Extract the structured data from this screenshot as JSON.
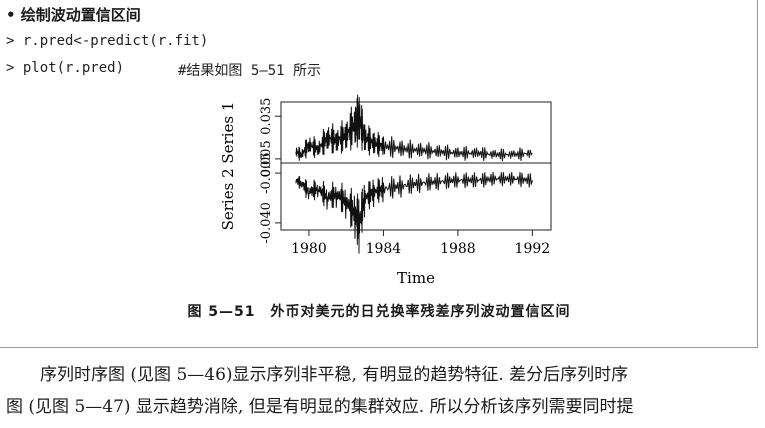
{
  "heading": "• 绘制波动置信区间",
  "code_lines": [
    "> r.pred<-predict(r.fit)",
    "> plot(r.pred)"
  ],
  "comment": "#结果如图 5—51 所示",
  "chart_data": {
    "type": "line",
    "ylabel": "Series 2 Series 1",
    "xlabel": "Time",
    "x_ticks": [
      "1980",
      "1984",
      "1988",
      "1992"
    ],
    "y_ticks": [
      "-0.040",
      "-0.005",
      "0.005",
      "0.035"
    ],
    "xlim": [
      1978.5,
      1993
    ],
    "series": [
      {
        "x": [
          1979.3,
          1979.6,
          1980,
          1980.5,
          1981,
          1981.5,
          1982,
          1982.5,
          1982.7,
          1983,
          1983.5,
          1984,
          1985,
          1986,
          1987,
          1988,
          1989,
          1990,
          1991,
          1992
        ],
        "values": [
          0.01,
          0.008,
          0.015,
          0.012,
          0.02,
          0.018,
          0.022,
          0.03,
          0.034,
          0.02,
          0.016,
          0.014,
          0.012,
          0.011,
          0.01,
          0.009,
          0.009,
          0.008,
          0.008,
          0.009
        ]
      },
      {
        "x": [
          1979.3,
          1979.6,
          1980,
          1980.5,
          1981,
          1981.5,
          1982,
          1982.5,
          1982.7,
          1983,
          1983.5,
          1984,
          1985,
          1986,
          1987,
          1988,
          1989,
          1990,
          1991,
          1992
        ],
        "values": [
          -0.01,
          -0.012,
          -0.018,
          -0.016,
          -0.022,
          -0.02,
          -0.025,
          -0.034,
          -0.04,
          -0.022,
          -0.018,
          -0.016,
          -0.014,
          -0.012,
          -0.011,
          -0.01,
          -0.01,
          -0.009,
          -0.009,
          -0.01
        ]
      }
    ]
  },
  "caption": "图 5—51　外币对美元的日兑换率残差序列波动置信区间",
  "paragraph_lines": [
    "序列时序图 (见图 5—46)显示序列非平稳, 有明显的趋势特征. 差分后序列时序",
    "图 (见图 5—47) 显示趋势消除, 但是有明显的集群效应. 所以分析该序列需要同时提"
  ]
}
